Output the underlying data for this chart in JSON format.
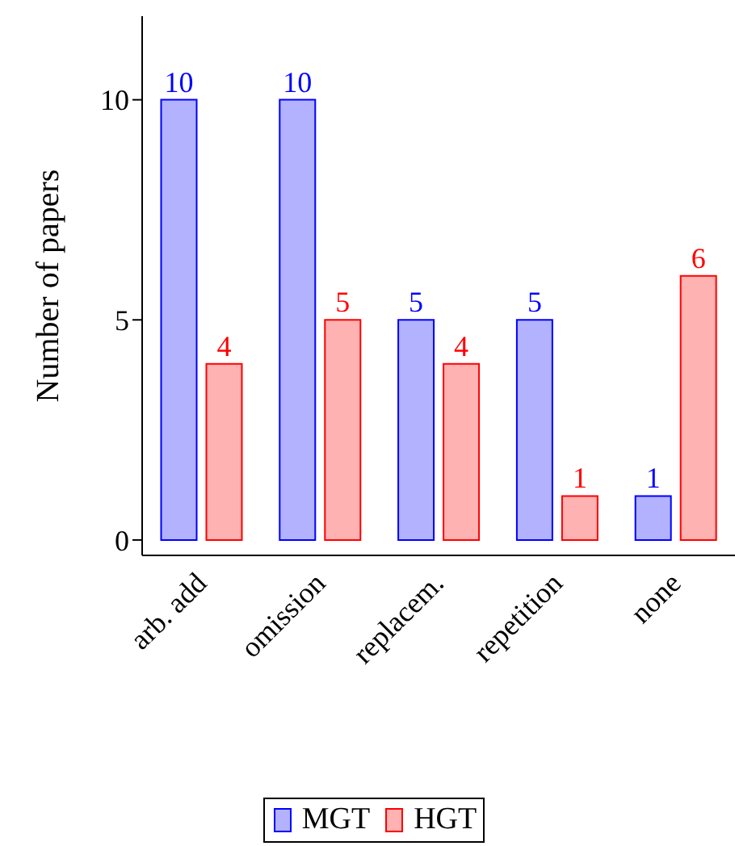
{
  "chart_data": {
    "type": "bar",
    "ylabel": "Number of papers",
    "categories": [
      "arb. add",
      "omission",
      "replacem.",
      "repetition",
      "none"
    ],
    "series": [
      {
        "name": "MGT",
        "color": "#0000ff",
        "values": [
          10,
          10,
          5,
          5,
          1
        ]
      },
      {
        "name": "HGT",
        "color": "#ff0000",
        "values": [
          4,
          5,
          4,
          1,
          6
        ]
      }
    ],
    "ylim": [
      -0.35,
      11.9
    ],
    "yticks": [
      0,
      5,
      10
    ],
    "legend": "bottom",
    "data_labels": true
  }
}
